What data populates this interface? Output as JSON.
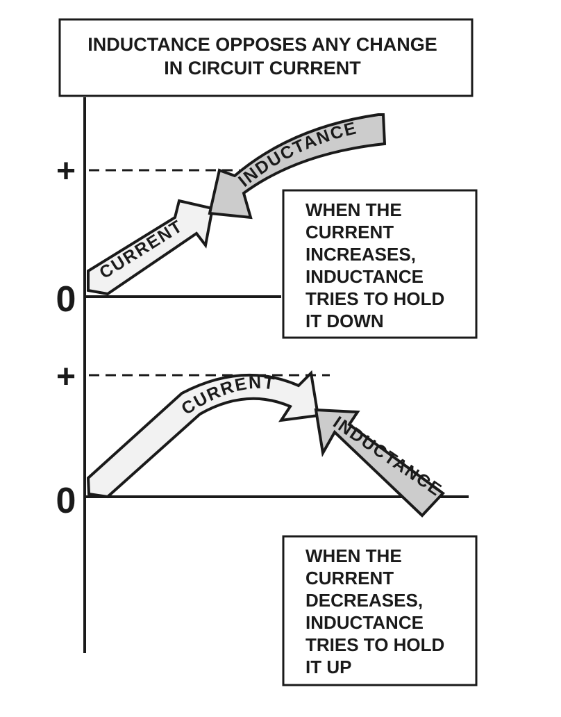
{
  "title": {
    "line1": "INDUCTANCE OPPOSES ANY CHANGE",
    "line2": "IN CIRCUIT CURRENT"
  },
  "axis_labels": {
    "plus": "+",
    "zero": "0"
  },
  "arrows": {
    "current": "CURRENT",
    "inductance": "INDUCTANCE"
  },
  "note_increase": {
    "lines": [
      "WHEN THE",
      "CURRENT",
      "INCREASES,",
      "INDUCTANCE",
      "TRIES TO HOLD",
      "IT DOWN"
    ]
  },
  "note_decrease": {
    "lines": [
      "WHEN THE",
      "CURRENT",
      "DECREASES,",
      "INDUCTANCE",
      "TRIES TO HOLD",
      "IT UP"
    ]
  },
  "colors": {
    "ink": "#1a1a1a",
    "current_fill": "#f2f2f2",
    "inductance_fill": "#cccccc"
  }
}
